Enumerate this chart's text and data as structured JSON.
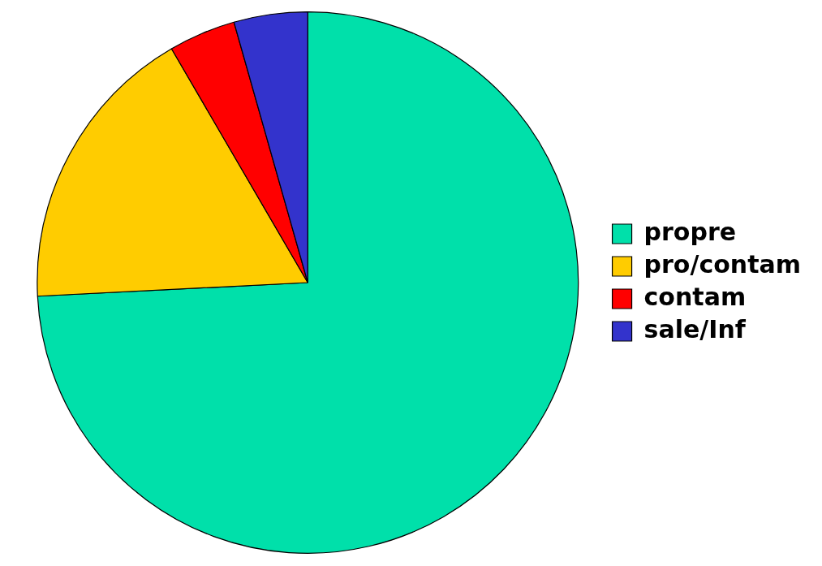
{
  "chart_data": {
    "type": "pie",
    "categories": [
      "propre",
      "pro/contam",
      "contam",
      "sale/Inf"
    ],
    "values": [
      74.2,
      17.4,
      4.0,
      4.4
    ],
    "colors": [
      "#00e0aa",
      "#ffcc00",
      "#ff0000",
      "#3333cc"
    ],
    "legend": "right"
  }
}
